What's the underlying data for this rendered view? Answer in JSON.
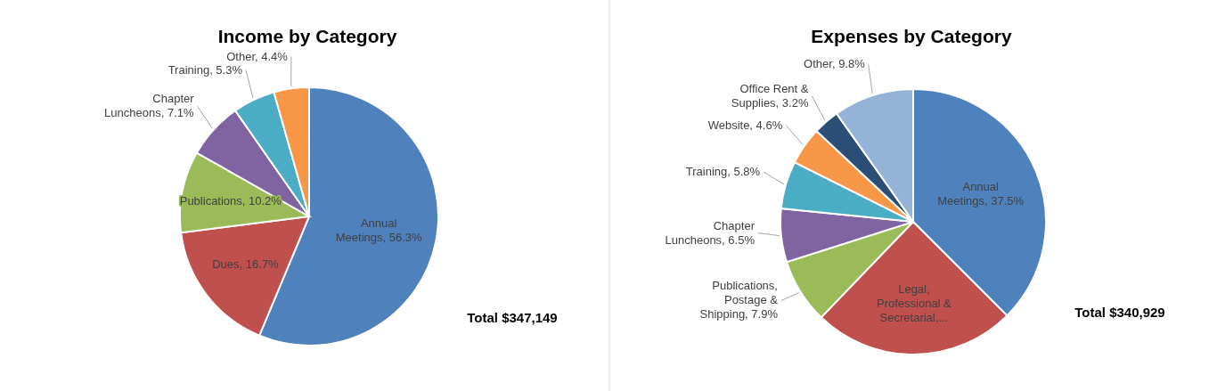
{
  "chart_data": [
    {
      "type": "pie",
      "title": "Income by Category",
      "categories": [
        "Annual Meetings",
        "Dues",
        "Publications",
        "Chapter Luncheons",
        "Training",
        "Other"
      ],
      "values": [
        56.3,
        16.7,
        10.2,
        7.1,
        5.3,
        4.4
      ],
      "colors": [
        "#4f81bd",
        "#c0504d",
        "#9bbb59",
        "#8064a2",
        "#4bacc6",
        "#f79646"
      ],
      "value_labels": [
        "56.3%",
        "16.7%",
        "10.2%",
        "7.1%",
        "5.3%",
        "4.4%"
      ],
      "legend": false,
      "annotations": [
        "Total $347,149"
      ]
    },
    {
      "type": "pie",
      "title": "Expenses by Category",
      "categories": [
        "Annual Meetings",
        "Legal, Professional & Secretarial,...",
        "Publications, Postage & Shipping",
        "Chapter Luncheons",
        "Training",
        "Website",
        "Office Rent & Supplies",
        "Other"
      ],
      "values": [
        37.5,
        24.7,
        7.9,
        6.5,
        5.8,
        4.6,
        3.2,
        9.8
      ],
      "colors": [
        "#4f81bd",
        "#c0504d",
        "#9bbb59",
        "#8064a2",
        "#4bacc6",
        "#f79646",
        "#2c4d75",
        "#95b3d7"
      ],
      "value_labels": [
        "37.5%",
        null,
        "7.9%",
        "6.5%",
        "5.8%",
        "4.6%",
        "3.2%",
        "9.8%"
      ],
      "legend": false,
      "annotations": [
        "Total $340,929"
      ]
    }
  ]
}
